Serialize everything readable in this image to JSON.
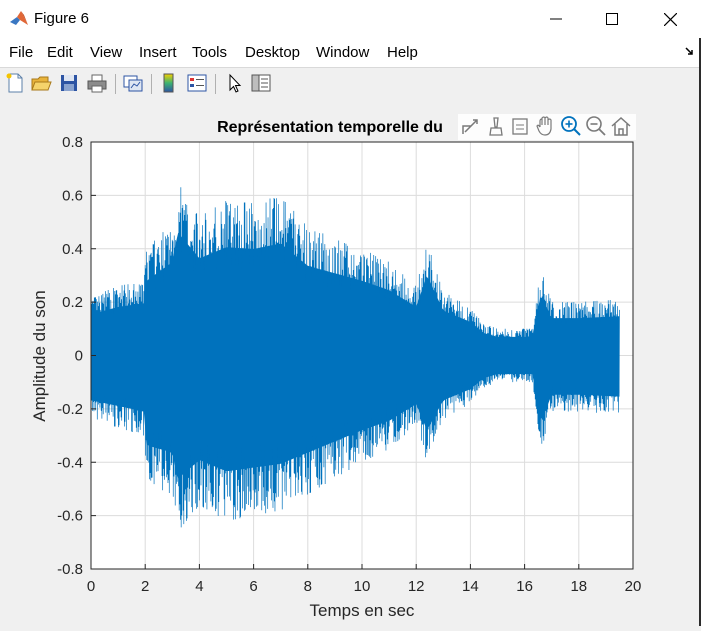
{
  "window": {
    "title": "Figure 6"
  },
  "menu": [
    "File",
    "Edit",
    "View",
    "Insert",
    "Tools",
    "Desktop",
    "Window",
    "Help"
  ],
  "toolbar_icons": [
    "new-figure-icon",
    "open-file-icon",
    "save-icon",
    "print-icon",
    "link-plot-icon",
    "colorbar-icon",
    "legend-icon",
    "select-pointer-icon",
    "property-inspector-icon"
  ],
  "axes_toolbar_icons": [
    "export-icon",
    "brush-icon",
    "datatip-icon",
    "pan-icon",
    "zoom-in-icon",
    "zoom-out-icon",
    "home-icon"
  ],
  "colors": {
    "series": "#0072bd",
    "grid": "#dcdcdc"
  },
  "chart_data": {
    "type": "line",
    "title": "Représentation temporelle du",
    "xlabel": "Temps en sec",
    "ylabel": "Amplitude du son",
    "xlim": [
      0,
      20
    ],
    "ylim": [
      -0.8,
      0.8
    ],
    "xticks": [
      "0",
      "2",
      "4",
      "6",
      "8",
      "10",
      "12",
      "14",
      "16",
      "18",
      "20"
    ],
    "yticks": [
      "0.8",
      "0.6",
      "0.4",
      "0.2",
      "0",
      "-0.2",
      "-0.4",
      "-0.6",
      "-0.8"
    ],
    "grid": true,
    "series": [
      {
        "envelope_time": [
          0,
          1,
          1.95,
          2.05,
          3,
          3.2,
          4,
          5,
          6,
          7,
          8,
          9,
          10,
          11,
          12,
          12.4,
          13,
          14,
          14.5,
          15,
          16.3,
          16.6,
          17,
          18,
          19.5
        ],
        "envelope_upper": [
          0.22,
          0.26,
          0.28,
          0.4,
          0.5,
          0.66,
          0.52,
          0.58,
          0.57,
          0.6,
          0.48,
          0.44,
          0.4,
          0.35,
          0.26,
          0.43,
          0.24,
          0.18,
          0.12,
          0.1,
          0.1,
          0.33,
          0.2,
          0.2,
          0.21
        ],
        "envelope_lower": [
          -0.24,
          -0.27,
          -0.3,
          -0.48,
          -0.52,
          -0.66,
          -0.56,
          -0.62,
          -0.6,
          -0.58,
          -0.52,
          -0.46,
          -0.4,
          -0.35,
          -0.26,
          -0.4,
          -0.24,
          -0.18,
          -0.12,
          -0.1,
          -0.1,
          -0.36,
          -0.21,
          -0.21,
          -0.22
        ]
      }
    ]
  }
}
